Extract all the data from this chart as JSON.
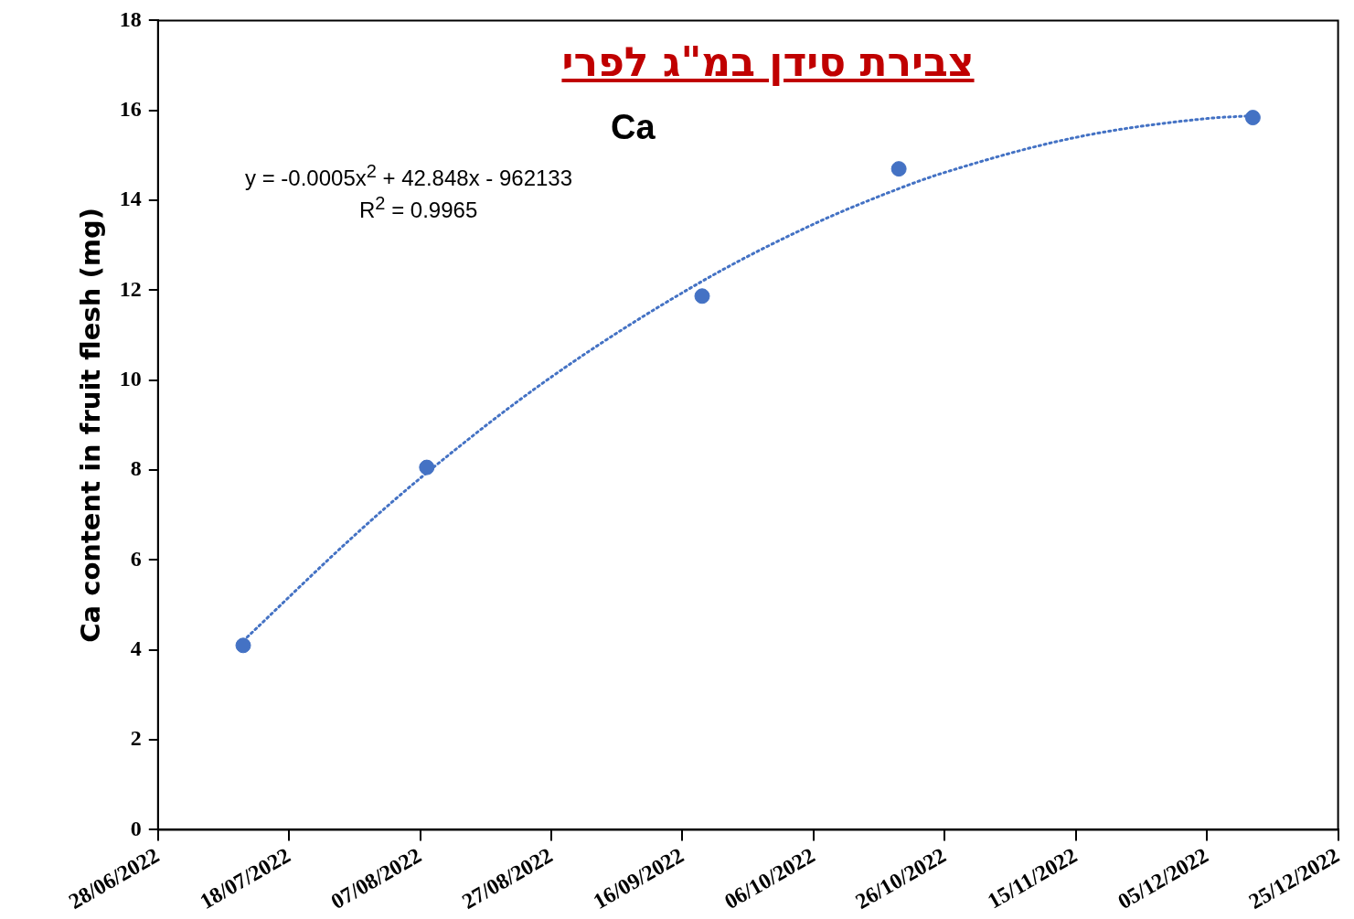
{
  "chart_data": {
    "type": "scatter",
    "title": "צבירת סידן במ\"ג לפרי",
    "ylabel": "Ca content in fruit flesh (mg)",
    "annotations": [
      "Ca",
      "y = -0.0005x$^{2}$ + 42.848x - 962133",
      "R$^{2}$ = 0.9965"
    ],
    "series": [
      {
        "color": "#4472c4",
        "x": [
          "2022-07-11",
          "2022-08-08",
          "2022-09-19",
          "2022-10-19",
          "2022-12-12"
        ],
        "values": [
          4.1,
          8.06,
          11.87,
          14.7,
          15.84
        ]
      },
      {
        "type": "line",
        "color": "#4472c4",
        "marker": "none",
        "line_style": "dotted",
        "x": [
          "2022-07-11",
          "2022-07-28",
          "2022-08-08",
          "2022-08-27",
          "2022-09-19",
          "2022-10-06",
          "2022-10-19",
          "2022-10-26",
          "2022-11-15",
          "2022-12-05",
          "2022-12-12"
        ],
        "values": [
          4.2,
          6.55,
          7.94,
          10.07,
          12.2,
          13.47,
          14.26,
          14.62,
          15.4,
          15.82,
          15.88
        ]
      }
    ],
    "xlim": [
      "2022-06-28",
      "2022-12-25"
    ],
    "xticks": [
      {
        "value": "2022-06-28",
        "label": "28/06/2022"
      },
      {
        "value": "2022-07-18",
        "label": "18/07/2022"
      },
      {
        "value": "2022-08-07",
        "label": "07/08/2022"
      },
      {
        "value": "2022-08-27",
        "label": "27/08/2022"
      },
      {
        "value": "2022-09-16",
        "label": "16/09/2022"
      },
      {
        "value": "2022-10-06",
        "label": "06/10/2022"
      },
      {
        "value": "2022-10-26",
        "label": "26/10/2022"
      },
      {
        "value": "2022-11-15",
        "label": "15/11/2022"
      },
      {
        "value": "2022-12-05",
        "label": "05/12/2022"
      },
      {
        "value": "2022-12-25",
        "label": "25/12/2022"
      }
    ],
    "ylim": [
      0,
      18
    ],
    "yticks": [
      0,
      2,
      4,
      6,
      8,
      10,
      12,
      14,
      16,
      18
    ],
    "grid": false,
    "legend": false,
    "marker": "circle"
  }
}
